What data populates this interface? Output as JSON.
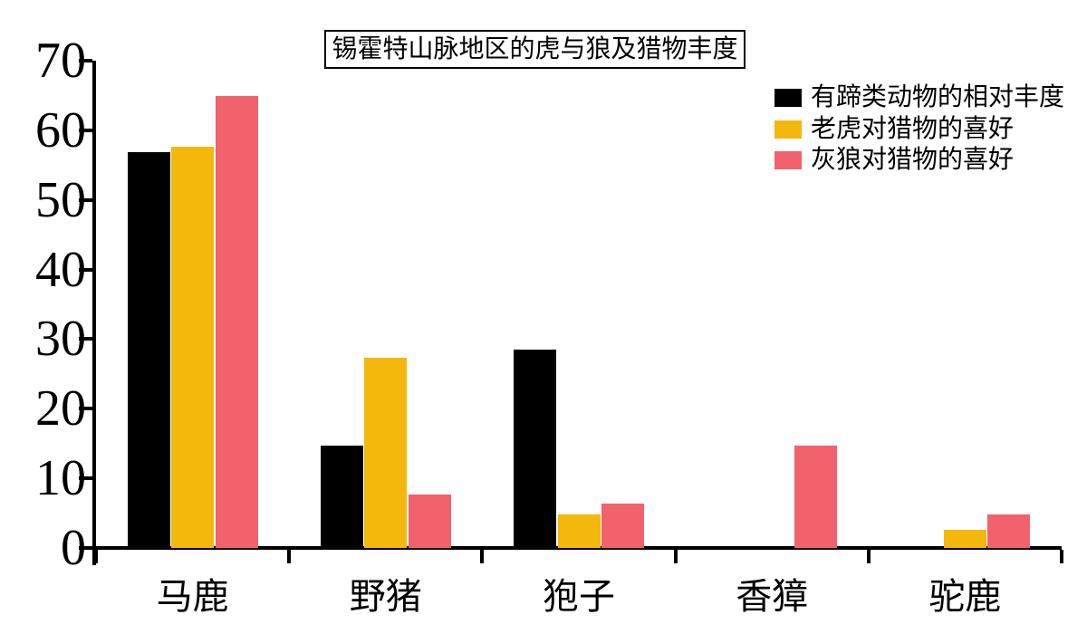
{
  "chart_data": {
    "type": "bar",
    "title": "锡霍特山脉地区的虎与狼及猎物丰度",
    "categories": [
      "马鹿",
      "野猪",
      "狍子",
      "香獐",
      "驼鹿"
    ],
    "series": [
      {
        "name": "有蹄类动物的相对丰度",
        "color": "#000000",
        "values": [
          56.8,
          14.7,
          28.5,
          0,
          0
        ]
      },
      {
        "name": "老虎对猎物的喜好",
        "color": "#F4B70C",
        "values": [
          57.7,
          27.3,
          4.8,
          0,
          2.6
        ]
      },
      {
        "name": "灰狼对猎物的喜好",
        "color": "#F2626C",
        "values": [
          64.9,
          7.7,
          6.4,
          14.7,
          4.8
        ]
      }
    ],
    "xlabel": "",
    "ylabel": "",
    "ylim": [
      0,
      70
    ],
    "yticks": [
      0,
      10,
      20,
      30,
      40,
      50,
      60,
      70
    ],
    "grid": false,
    "legend_position": "upper-right",
    "background_color": "#ffffff",
    "axis_color": "#000000"
  }
}
